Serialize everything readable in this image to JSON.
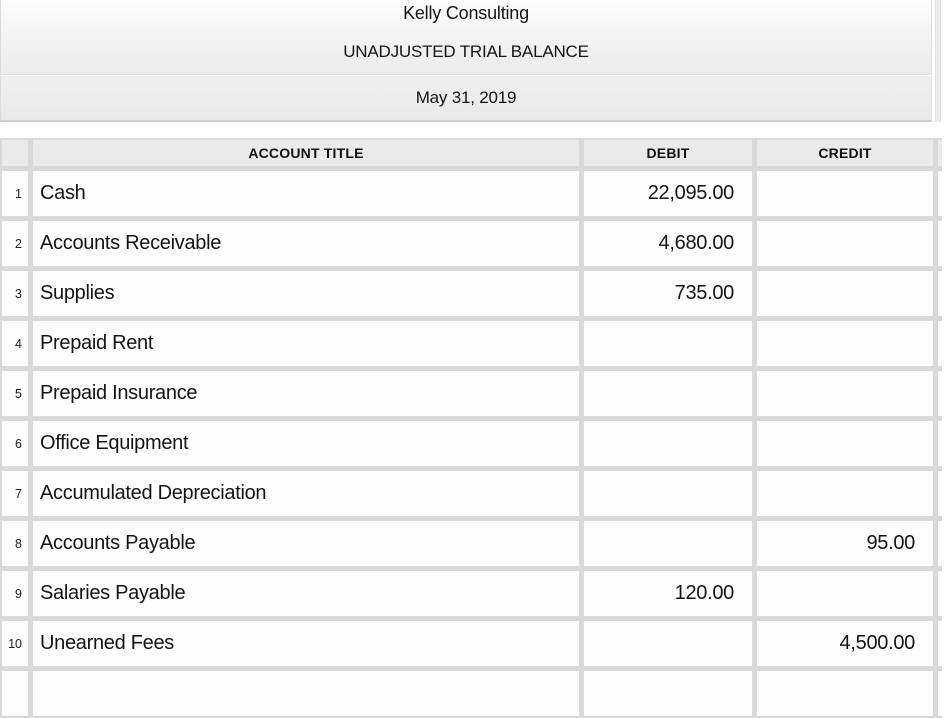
{
  "sheet": {
    "company": "Kelly Consulting",
    "report_title": "UNADJUSTED TRIAL BALANCE",
    "report_date": "May 31, 2019"
  },
  "table": {
    "columns": {
      "account": "ACCOUNT TITLE",
      "debit": "DEBIT",
      "credit": "CREDIT"
    },
    "rows": [
      {
        "num": "1",
        "account": "Cash",
        "debit": "22,095.00",
        "credit": ""
      },
      {
        "num": "2",
        "account": "Accounts Receivable",
        "debit": "4,680.00",
        "credit": ""
      },
      {
        "num": "3",
        "account": "Supplies",
        "debit": "735.00",
        "credit": ""
      },
      {
        "num": "4",
        "account": "Prepaid Rent",
        "debit": "",
        "credit": ""
      },
      {
        "num": "5",
        "account": "Prepaid Insurance",
        "debit": "",
        "credit": ""
      },
      {
        "num": "6",
        "account": "Office Equipment",
        "debit": "",
        "credit": ""
      },
      {
        "num": "7",
        "account": "Accumulated Depreciation",
        "debit": "",
        "credit": ""
      },
      {
        "num": "8",
        "account": "Accounts Payable",
        "debit": "",
        "credit": "95.00"
      },
      {
        "num": "9",
        "account": "Salaries Payable",
        "debit": "120.00",
        "credit": ""
      },
      {
        "num": "10",
        "account": "Unearned Fees",
        "debit": "",
        "credit": "4,500.00"
      }
    ]
  }
}
